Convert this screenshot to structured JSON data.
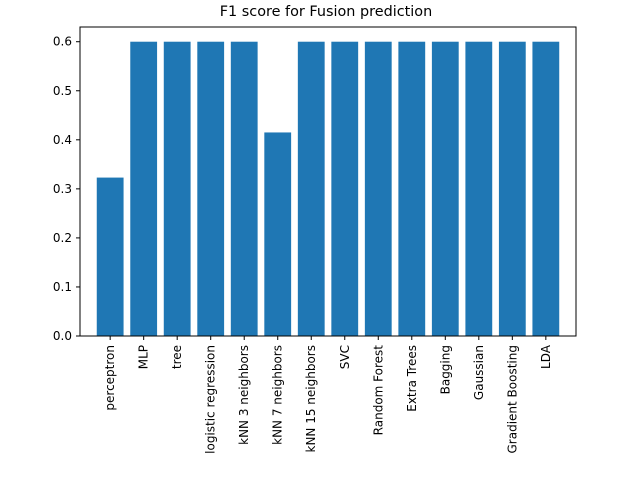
{
  "chart_data": {
    "type": "bar",
    "title": "F1 score for Fusion prediction",
    "xlabel": "",
    "ylabel": "",
    "categories": [
      "perceptron",
      "MLP",
      "tree",
      "logistic regression",
      "kNN 3 neighbors",
      "kNN 7 neighbors",
      "kNN 15 neighbors",
      "SVC",
      "Random Forest",
      "Extra Trees",
      "Bagging",
      "Gaussian",
      "Gradient Boosting",
      "LDA"
    ],
    "values": [
      0.323,
      0.6,
      0.6,
      0.6,
      0.6,
      0.415,
      0.6,
      0.6,
      0.6,
      0.6,
      0.6,
      0.6,
      0.6,
      0.6
    ],
    "ylim": [
      0,
      0.63
    ],
    "yticks": [
      0.0,
      0.1,
      0.2,
      0.3,
      0.4,
      0.5,
      0.6
    ],
    "ytick_labels": [
      "0.0",
      "0.1",
      "0.2",
      "0.3",
      "0.4",
      "0.5",
      "0.6"
    ],
    "grid": false,
    "legend": "none",
    "colors": {
      "bar": "#1f77b4",
      "axis": "#000000",
      "background": "#ffffff"
    }
  }
}
